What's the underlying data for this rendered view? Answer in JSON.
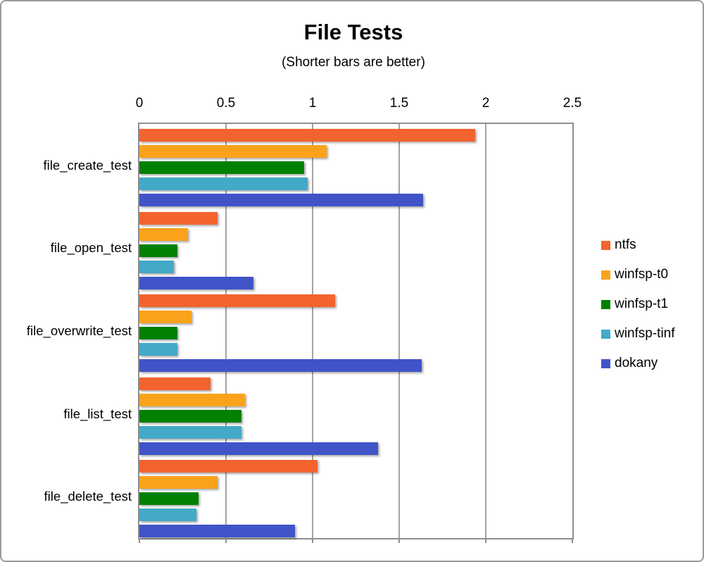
{
  "title": "File Tests",
  "subtitle": "(Shorter bars are better)",
  "colors": {
    "ntfs": "#F2632E",
    "winfsp_t0": "#FAA21B",
    "winfsp_t1": "#028002",
    "winfsp_tinf": "#42AAC6",
    "dokany": "#4054C8",
    "gridline": "#A3A3A3",
    "plot_border": "#8F8F8F"
  },
  "chart_data": {
    "type": "bar",
    "orientation": "horizontal",
    "title": "File Tests",
    "subtitle": "(Shorter bars are better)",
    "categories": [
      "file_create_test",
      "file_open_test",
      "file_overwrite_test",
      "file_list_test",
      "file_delete_test"
    ],
    "series": [
      {
        "name": "ntfs",
        "color": "#F2632E",
        "values": [
          1.94,
          0.45,
          1.13,
          0.41,
          1.03
        ]
      },
      {
        "name": "winfsp-t0",
        "color": "#FAA21B",
        "values": [
          1.08,
          0.28,
          0.3,
          0.61,
          0.45
        ]
      },
      {
        "name": "winfsp-t1",
        "color": "#028002",
        "values": [
          0.95,
          0.22,
          0.22,
          0.59,
          0.34
        ]
      },
      {
        "name": "winfsp-tinf",
        "color": "#42AAC6",
        "values": [
          0.97,
          0.2,
          0.22,
          0.59,
          0.33
        ]
      },
      {
        "name": "dokany",
        "color": "#4054C8",
        "values": [
          1.64,
          0.66,
          1.63,
          1.38,
          0.9
        ]
      }
    ],
    "x_axis": {
      "min": 0,
      "max": 2.5,
      "tick_step": 0.5,
      "ticks": [
        "0",
        "0.5",
        "1",
        "1.5",
        "2",
        "2.5"
      ],
      "position": "top"
    },
    "grid": true,
    "legend": {
      "position": "right",
      "entries": [
        "ntfs",
        "winfsp-t0",
        "winfsp-t1",
        "winfsp-tinf",
        "dokany"
      ]
    }
  }
}
